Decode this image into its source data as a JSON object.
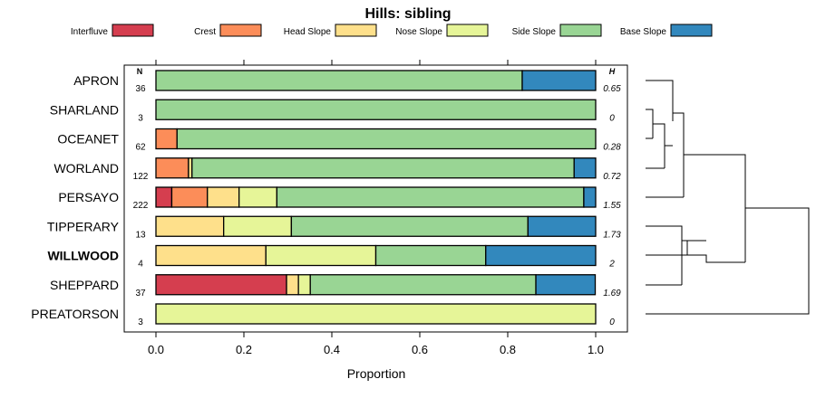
{
  "chart_data": {
    "type": "bar",
    "stacked": true,
    "orientation": "horizontal",
    "title": "Hills: sibling",
    "xlabel": "Proportion",
    "ylabel": "",
    "xlim": [
      0,
      1
    ],
    "x_ticks": [
      "0.0",
      "0.2",
      "0.4",
      "0.6",
      "0.8",
      "1.0"
    ],
    "n_header": "N",
    "h_header": "H",
    "legend": [
      {
        "name": "Interfluve",
        "color": "#D53E4F"
      },
      {
        "name": "Crest",
        "color": "#FC8D59"
      },
      {
        "name": "Head Slope",
        "color": "#FEE08B"
      },
      {
        "name": "Nose Slope",
        "color": "#E6F598"
      },
      {
        "name": "Side Slope",
        "color": "#99D594"
      },
      {
        "name": "Base Slope",
        "color": "#3288BD"
      }
    ],
    "categories": [
      "APRON",
      "SHARLAND",
      "OCEANET",
      "WORLAND",
      "PERSAYO",
      "TIPPERARY",
      "WILLWOOD",
      "SHEPPARD",
      "PREATORSON"
    ],
    "highlight": "WILLWOOD",
    "n_values": [
      "36",
      "3",
      "62",
      "122",
      "222",
      "13",
      "4",
      "37",
      "3"
    ],
    "h_values": [
      "0.65",
      "0",
      "0.28",
      "0.72",
      "1.55",
      "1.73",
      "2",
      "1.69",
      "0"
    ],
    "series": [
      {
        "name": "Interfluve",
        "values": [
          0,
          0,
          0,
          0,
          0.036,
          0,
          0,
          0.297,
          0
        ]
      },
      {
        "name": "Crest",
        "values": [
          0,
          0,
          0.048,
          0.074,
          0.081,
          0,
          0,
          0,
          0
        ]
      },
      {
        "name": "Head Slope",
        "values": [
          0,
          0,
          0,
          0.008,
          0.072,
          0.154,
          0.25,
          0.027,
          0
        ]
      },
      {
        "name": "Nose Slope",
        "values": [
          0,
          0,
          0,
          0,
          0.086,
          0.154,
          0.25,
          0.027,
          1.0
        ]
      },
      {
        "name": "Side Slope",
        "values": [
          0.833,
          1.0,
          0.952,
          0.869,
          0.698,
          0.538,
          0.25,
          0.513,
          0
        ]
      },
      {
        "name": "Base Slope",
        "values": [
          0.167,
          0,
          0,
          0.049,
          0.027,
          0.154,
          0.25,
          0.135,
          0
        ]
      }
    ]
  }
}
